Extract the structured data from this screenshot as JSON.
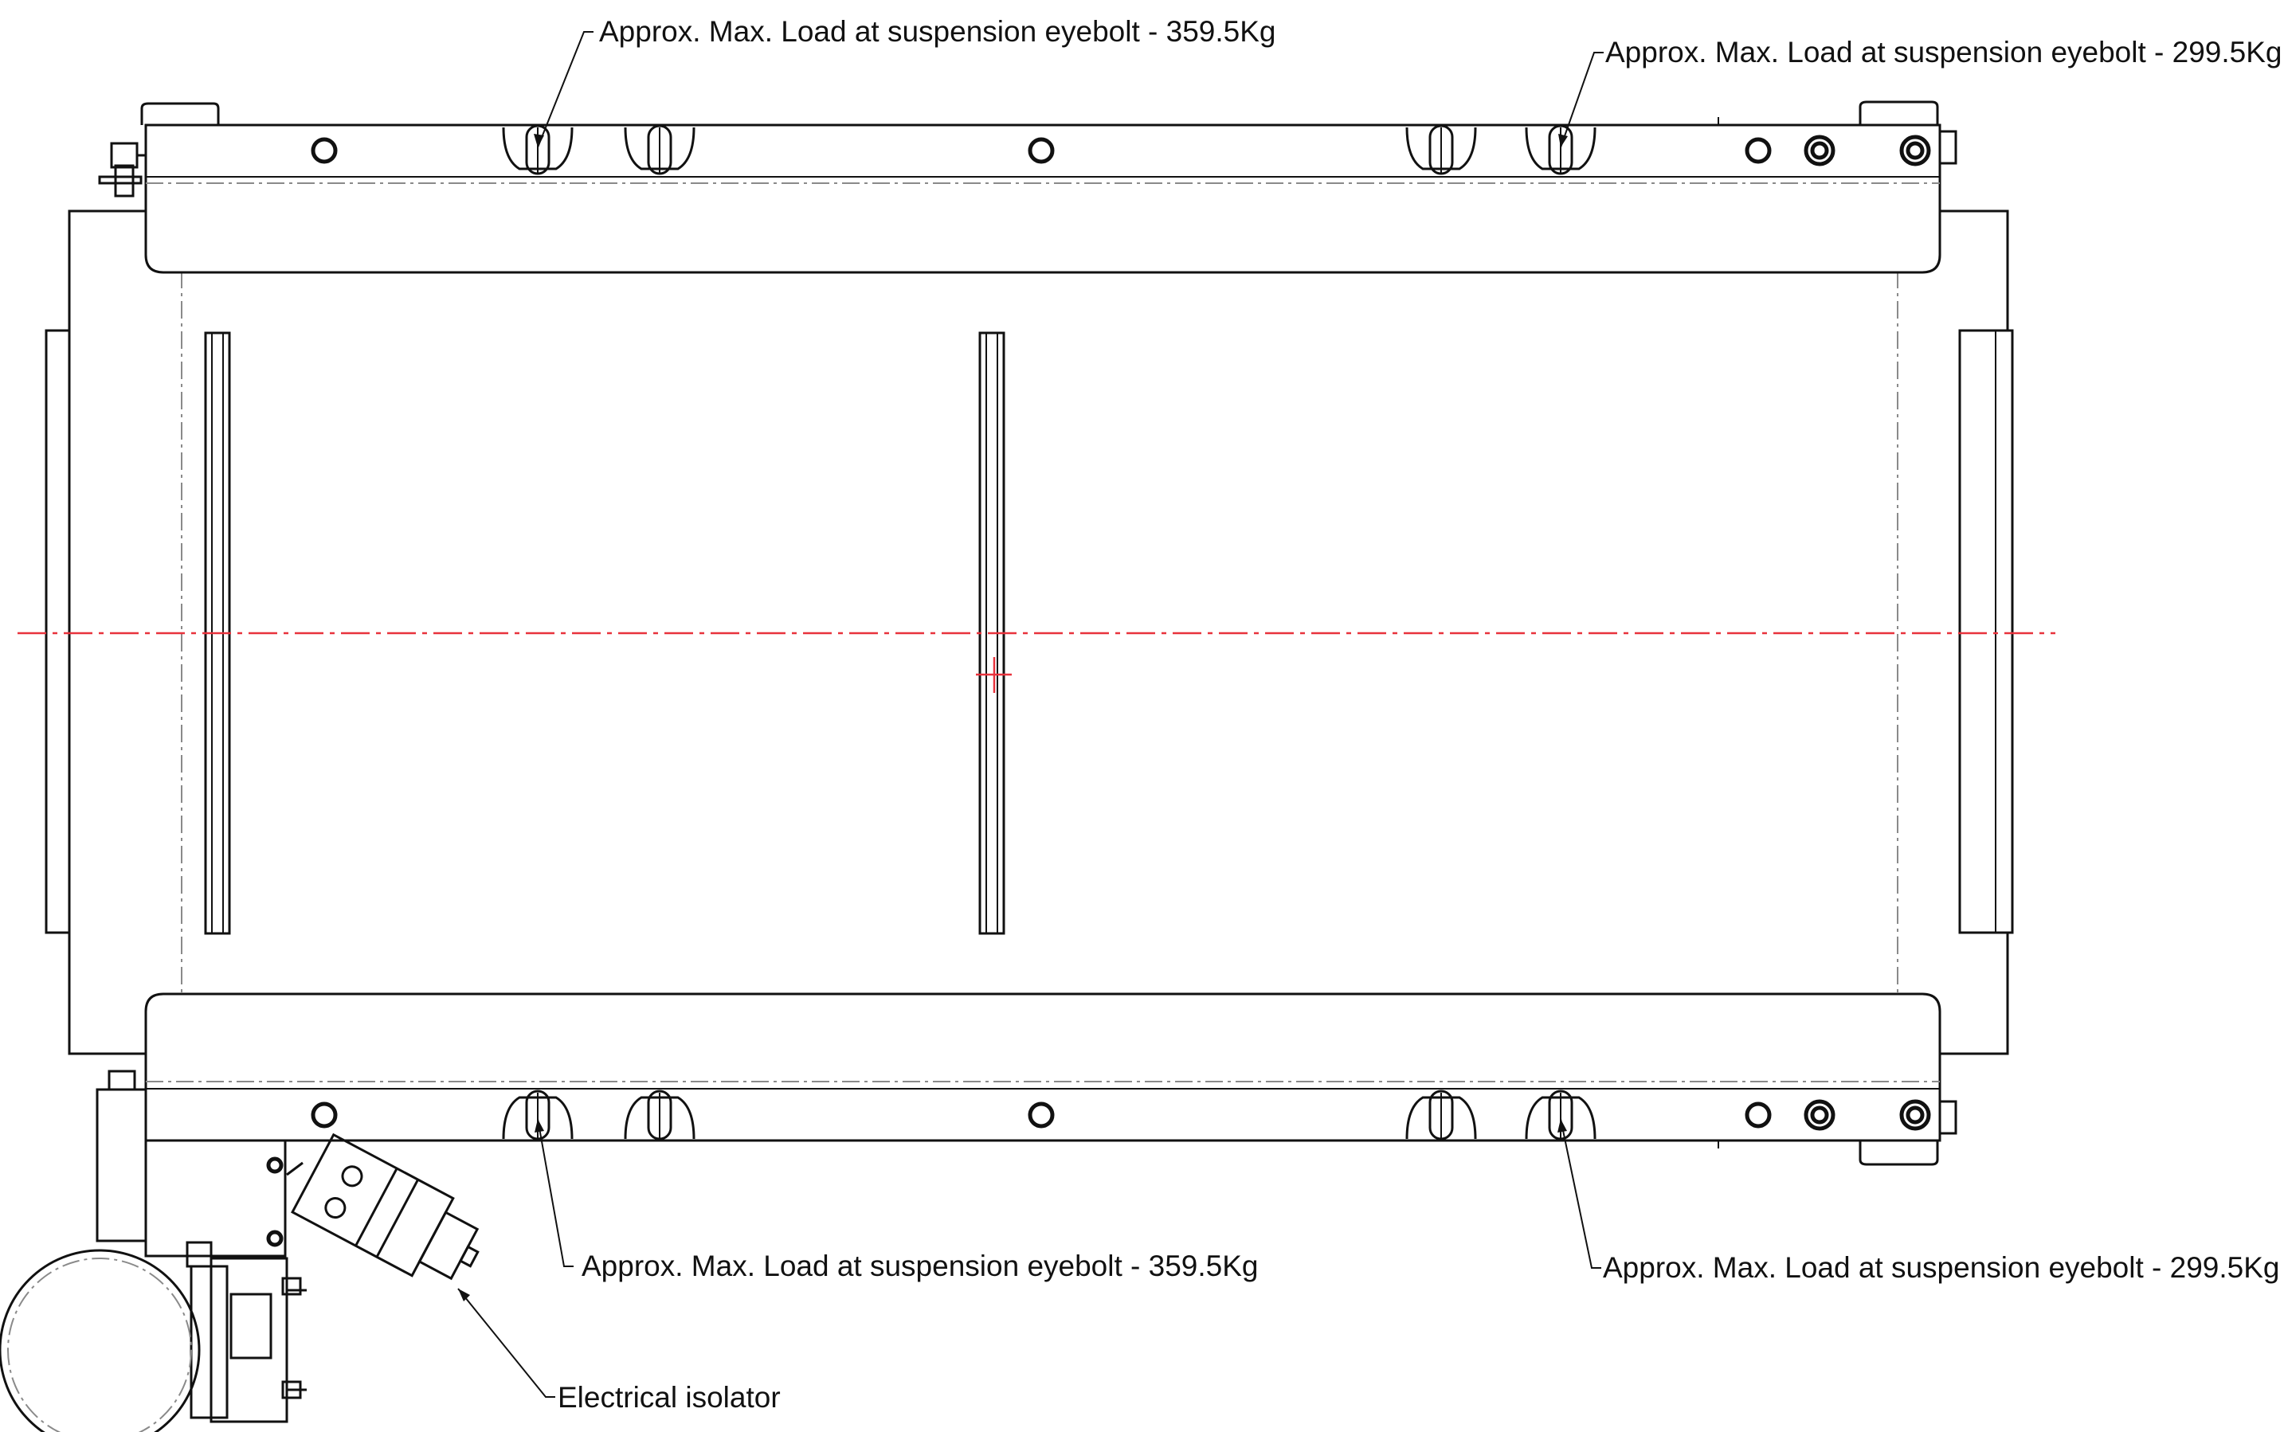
{
  "annotations": {
    "top_left": "Approx. Max. Load at suspension eyebolt - 359.5Kg",
    "top_right": "Approx. Max. Load at suspension eyebolt - 299.5Kg",
    "bottom_left": "Approx. Max. Load at suspension eyebolt - 359.5Kg",
    "bottom_right": "Approx. Max. Load at suspension eyebolt - 299.5Kg",
    "isolator": "Electrical isolator"
  },
  "colors": {
    "line": "#111111",
    "hidden_line": "#8a8a8a",
    "centerline": "#e8323c",
    "background": "#ffffff"
  }
}
